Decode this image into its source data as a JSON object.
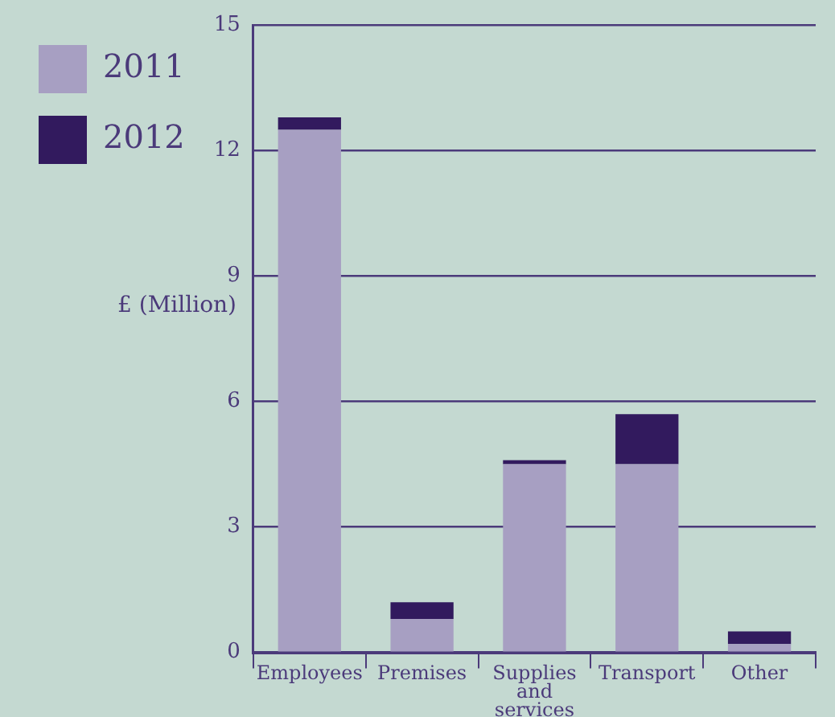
{
  "chart_data": {
    "type": "bar",
    "stacked": true,
    "ylabel": "£ (Million)",
    "categories": [
      "Employees",
      "Premises",
      "Supplies and services",
      "Transport",
      "Other"
    ],
    "series": [
      {
        "name": "2011",
        "color": "#a79fc2",
        "values": [
          12.5,
          0.8,
          4.5,
          4.5,
          0.2
        ]
      },
      {
        "name": "2012",
        "color": "#321a5e",
        "values": [
          0.3,
          0.4,
          0.1,
          1.2,
          0.3
        ]
      }
    ],
    "ylim": [
      0,
      15
    ],
    "yticks": [
      0,
      3,
      6,
      9,
      12,
      15
    ],
    "grid": "y",
    "legend": "top left"
  }
}
